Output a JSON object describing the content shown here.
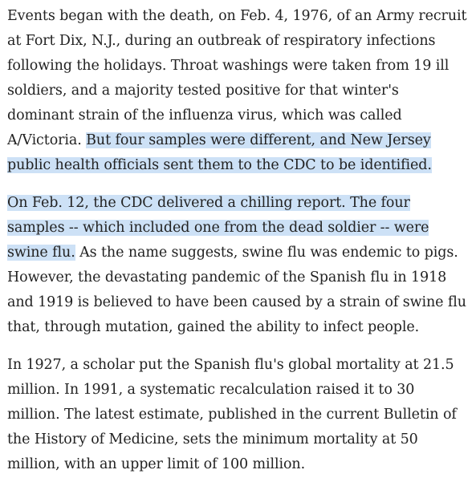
{
  "article": {
    "paragraphs": [
      {
        "plain_before": "Events began with the death, on Feb. 4, 1976, of an Army recruit at Fort Dix, N.J., during an outbreak of respiratory infections following the holidays. Throat washings were taken from 19 ill soldiers, and a majority tested positive for that winter's dominant strain of the influenza virus, which was called A/Victoria. ",
        "highlighted": "But four samples were different, and New Jersey public health officials sent them to the CDC to be identified.",
        "plain_after": ""
      },
      {
        "plain_before": "",
        "highlighted": "On Feb. 12, the CDC delivered a chilling report. The four samples -- which included one from the dead soldier -- were swine flu.",
        "plain_after": " As the name suggests, swine flu was endemic to pigs. However, the devastating pandemic of the Spanish flu in 1918 and 1919 is believed to have been caused by a strain of swine flu that, through mutation, gained the ability to infect people."
      },
      {
        "plain_before": "In 1927, a scholar put the Spanish flu's global mortality at 21.5 million. In 1991, a systematic recalculation raised it to 30 million. The latest estimate, published in the current Bulletin of the History of Medicine, sets the minimum mortality at 50 million, with an upper limit of 100 million.",
        "highlighted": "",
        "plain_after": ""
      }
    ],
    "selection_color": "#cde1f6",
    "text_color": "#222222"
  }
}
